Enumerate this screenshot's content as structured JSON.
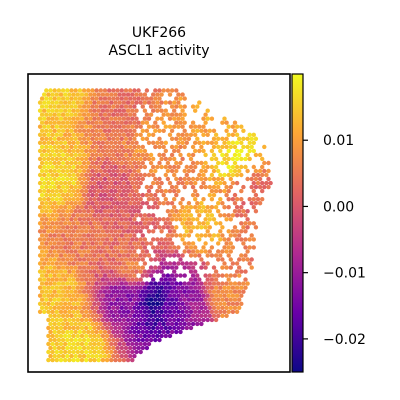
{
  "chart_data": {
    "type": "heatmap",
    "title_lines": [
      "UKF266",
      "ASCL1 activity"
    ],
    "colorbar": {
      "colormap": "plasma",
      "colors": [
        "#0d0887",
        "#6a00a8",
        "#b12a90",
        "#e16462",
        "#fca636",
        "#f0f921"
      ],
      "vmin": -0.025,
      "vmax": 0.02,
      "ticks": [
        0.01,
        0.0,
        -0.01,
        -0.02
      ],
      "tick_labels": [
        "0.01",
        "0.00",
        "−0.01",
        "−0.02"
      ]
    },
    "x_ticks": [],
    "y_ticks": [],
    "grid": false,
    "points": [
      {
        "x": 0.1,
        "y": 0.95,
        "value": 0.015
      },
      {
        "x": 0.35,
        "y": 0.9,
        "value": 0.004
      },
      {
        "x": 0.12,
        "y": 0.65,
        "value": 0.016
      },
      {
        "x": 0.3,
        "y": 0.6,
        "value": 0.0
      },
      {
        "x": 0.22,
        "y": 0.45,
        "value": 0.005
      },
      {
        "x": 0.1,
        "y": 0.25,
        "value": 0.014
      },
      {
        "x": 0.2,
        "y": 0.08,
        "value": 0.016
      },
      {
        "x": 0.4,
        "y": 0.35,
        "value": 0.006
      },
      {
        "x": 0.38,
        "y": 0.25,
        "value": -0.012
      },
      {
        "x": 0.48,
        "y": 0.24,
        "value": -0.024
      },
      {
        "x": 0.55,
        "y": 0.23,
        "value": -0.016
      },
      {
        "x": 0.62,
        "y": 0.22,
        "value": -0.01
      },
      {
        "x": 0.75,
        "y": 0.25,
        "value": 0.008
      },
      {
        "x": 0.72,
        "y": 0.8,
        "value": 0.011
      },
      {
        "x": 0.78,
        "y": 0.72,
        "value": 0.018
      },
      {
        "x": 0.65,
        "y": 0.5,
        "value": 0.013
      },
      {
        "x": 0.58,
        "y": 0.65,
        "value": 0.006
      },
      {
        "x": 0.85,
        "y": 0.6,
        "value": 0.003
      },
      {
        "x": 0.5,
        "y": 0.75,
        "value": 0.009
      },
      {
        "x": 0.45,
        "y": 0.5,
        "value": 0.002
      }
    ]
  }
}
